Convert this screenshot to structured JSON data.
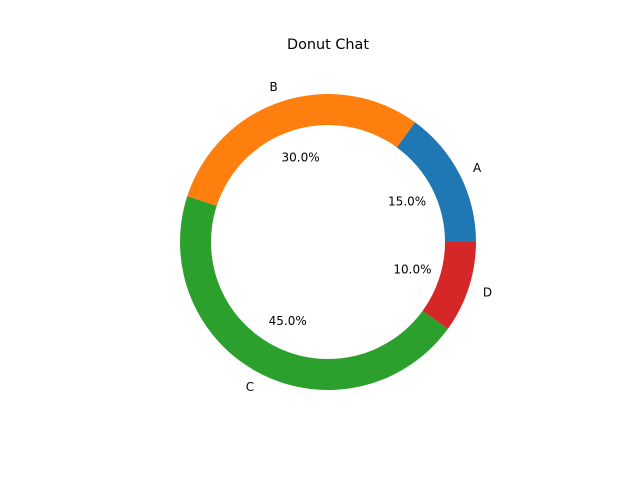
{
  "chart_data": {
    "type": "pie",
    "variant": "donut",
    "title": "Donut Chat",
    "categories": [
      "A",
      "B",
      "C",
      "D"
    ],
    "values": [
      15,
      30,
      45,
      10
    ],
    "percent_labels": [
      "15.0%",
      "30.0%",
      "45.0%",
      "10.0%"
    ],
    "colors": [
      "#1f77b4",
      "#ff7f0e",
      "#2ca02c",
      "#d62728"
    ],
    "start_angle_deg": 0,
    "direction": "counterclockwise",
    "legend": "none"
  }
}
